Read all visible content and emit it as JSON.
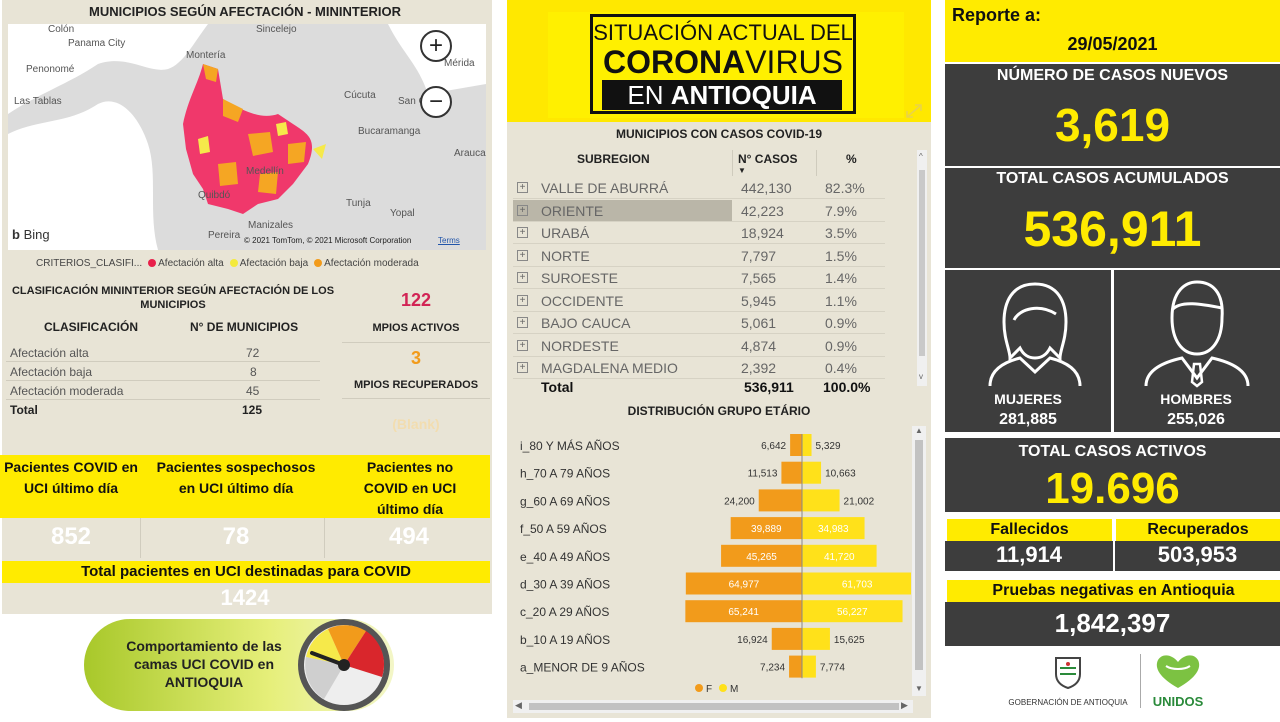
{
  "map": {
    "title": "MUNICIPIOS SEGÚN AFECTACIÓN - MININTERIOR",
    "places": [
      "Colón",
      "Panama City",
      "Penonomé",
      "Las Tablas",
      "Sincelejo",
      "Mérida",
      "Montería",
      "Cúcuta",
      "San C",
      "Bucaramanga",
      "Arauca",
      "Medellín",
      "Quibdó",
      "Tunja",
      "Yopal",
      "Manizales",
      "Pereira"
    ],
    "zoom_in": "+",
    "zoom_out": "−",
    "bing": "Bing",
    "copyright": "© 2021 TomTom, © 2021 Microsoft Corporation",
    "terms": "Terms",
    "colors": {
      "alta": "#f0386b",
      "baja": "#f6e94a",
      "moderada": "#f5a623",
      "water": "#ffffff",
      "land": "#dcdcdc"
    }
  },
  "legend": {
    "label": "CRITERIOS_CLASIFI...",
    "items": [
      {
        "label": "Afectación alta",
        "color": "#e8204a"
      },
      {
        "label": "Afectación baja",
        "color": "#f4ea3c"
      },
      {
        "label": "Afectación moderada",
        "color": "#f29b1b"
      }
    ]
  },
  "classification": {
    "title": "CLASIFICACIÓN MININTERIOR SEGÚN AFECTACIÓN DE LOS MUNICIPIOS",
    "col1": "CLASIFICACIÓN",
    "col2": "N° DE MUNICIPIOS",
    "rows": [
      {
        "label": "Afectación alta",
        "value": "72"
      },
      {
        "label": "Afectación baja",
        "value": "8"
      },
      {
        "label": "Afectación moderada",
        "value": "45"
      }
    ],
    "total_label": "Total",
    "total_value": "125"
  },
  "mpios": {
    "activos_value": "122",
    "activos_label": "MPIOS ACTIVOS",
    "recuperados_value": "3",
    "recuperados_label": "MPIOS RECUPERADOS",
    "blank": "(Blank)"
  },
  "uci": {
    "h1": "Pacientes COVID en UCI último día",
    "h2": "Pacientes sospechosos en UCI último día",
    "h3": "Pacientes no COVID en UCI último día",
    "v1": "852",
    "v2": "78",
    "v3": "494",
    "total_label": "Total pacientes en UCI destinadas para COVID",
    "total_value": "1424",
    "cta": "Comportamiento de las camas UCI COVID en ANTIOQUIA"
  },
  "banner": {
    "line1": "SITUACIÓN ACTUAL DEL",
    "line2_bold": "CORONA",
    "line2_light": "VIRUS",
    "line3_light": "EN ",
    "line3_bold": "ANTIOQUIA"
  },
  "subregion_table": {
    "title": "MUNICIPIOS CON CASOS COVID-19",
    "col1": "SUBREGION",
    "col2": "N° CASOS",
    "col3": "%",
    "rows": [
      {
        "name": "VALLE DE ABURRÁ",
        "cases": "442,130",
        "pct": "82.3%"
      },
      {
        "name": "ORIENTE",
        "cases": "42,223",
        "pct": "7.9%"
      },
      {
        "name": "URABÁ",
        "cases": "18,924",
        "pct": "3.5%"
      },
      {
        "name": "NORTE",
        "cases": "7,797",
        "pct": "1.5%"
      },
      {
        "name": "SUROESTE",
        "cases": "7,565",
        "pct": "1.4%"
      },
      {
        "name": "OCCIDENTE",
        "cases": "5,945",
        "pct": "1.1%"
      },
      {
        "name": "BAJO CAUCA",
        "cases": "5,061",
        "pct": "0.9%"
      },
      {
        "name": "NORDESTE",
        "cases": "4,874",
        "pct": "0.9%"
      },
      {
        "name": "MAGDALENA MEDIO",
        "cases": "2,392",
        "pct": "0.4%"
      }
    ],
    "total_label": "Total",
    "total_cases": "536,911",
    "total_pct": "100.0%"
  },
  "chart_data": {
    "type": "bar",
    "title": "DISTRIBUCIÓN GRUPO ETÁRIO",
    "categories": [
      "i_80 Y MÁS AÑOS",
      "h_70 A 79 AÑOS",
      "g_60 A 69 AÑOS",
      "f_50 A 59 AÑOS",
      "e_40 A 49 AÑOS",
      "d_30 A 39 AÑOS",
      "c_20 A 29 AÑOS",
      "b_10 A 19 AÑOS",
      "a_MENOR DE 9 AÑOS"
    ],
    "series": [
      {
        "name": "F",
        "color": "#f29b1b",
        "values": [
          6642,
          11513,
          24200,
          39889,
          45265,
          64977,
          65241,
          16924,
          7234
        ]
      },
      {
        "name": "M",
        "color": "#ffe11a",
        "values": [
          5329,
          10663,
          21002,
          34983,
          41720,
          61703,
          56227,
          15625,
          7774
        ]
      }
    ],
    "value_labels_f": [
      "6,642",
      "11,513",
      "24,200",
      "39,889",
      "45,265",
      "64,977",
      "65,241",
      "16,924",
      "7,234"
    ],
    "value_labels_m": [
      "5,329",
      "10,663",
      "21,002",
      "34,983",
      "41,720",
      "61,703",
      "56,227",
      "15,625",
      "7,774"
    ],
    "legend_f": "F",
    "legend_m": "M"
  },
  "report": {
    "label": "Reporte a:",
    "date": "29/05/2021",
    "new_cases_label": "NÚMERO DE CASOS NUEVOS",
    "new_cases": "3,619",
    "total_label": "TOTAL CASOS ACUMULADOS",
    "total": "536,911",
    "mujeres_label": "MUJERES",
    "mujeres": "281,885",
    "hombres_label": "HOMBRES",
    "hombres": "255,026",
    "active_label": "TOTAL CASOS ACTIVOS",
    "active": "19.696",
    "fallecidos_label": "Fallecidos",
    "fallecidos": "11,914",
    "recuperados_label": "Recuperados",
    "recuperados": "503,953",
    "pruebas_label": "Pruebas negativas en Antioquia",
    "pruebas": "1,842,397",
    "gob": "GOBERNACIÓN DE ANTIOQUIA",
    "unidos": "UNIDOS"
  }
}
